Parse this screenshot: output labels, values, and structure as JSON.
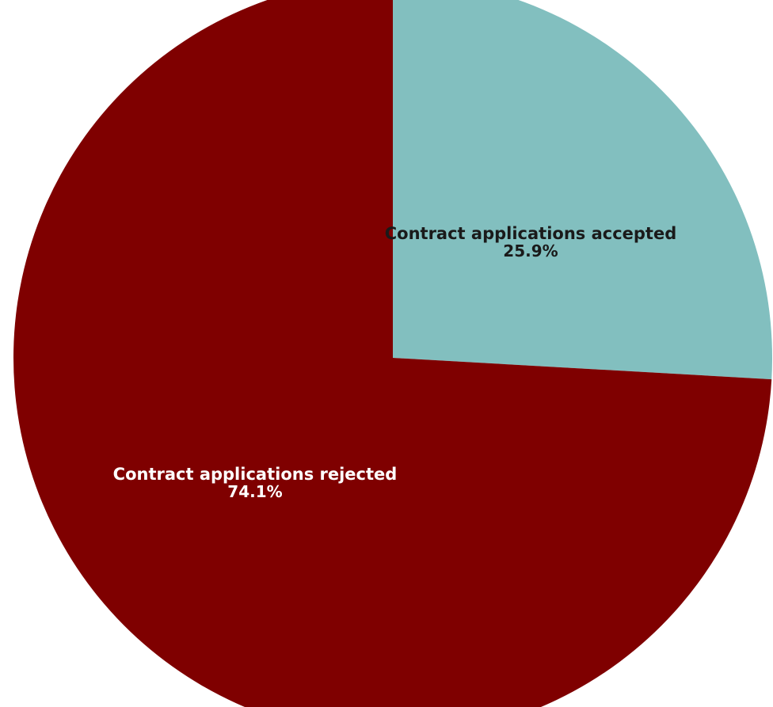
{
  "chart_data": {
    "type": "pie",
    "title": "",
    "slices": [
      {
        "label": "Contract applications accepted",
        "value": 25.9,
        "value_label": "25.9%",
        "color": "#82bfbf",
        "text_color": "#1a1a1a"
      },
      {
        "label": "Contract applications rejected",
        "value": 74.1,
        "value_label": "74.1%",
        "color": "#7f0000",
        "text_color": "#ffffff"
      }
    ],
    "start_angle_deg": 0,
    "direction": "clockwise"
  }
}
